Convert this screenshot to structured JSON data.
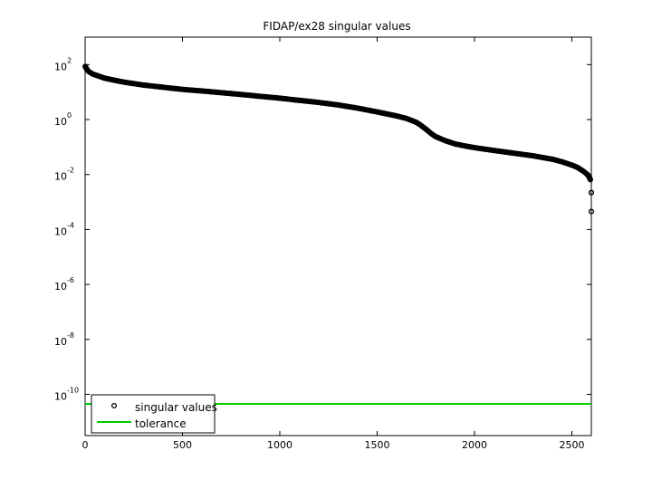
{
  "chart_data": {
    "type": "scatter",
    "title": "FIDAP/ex28 singular values",
    "xlabel": "",
    "ylabel": "",
    "xlim": [
      0,
      2600
    ],
    "ylim_log10": [
      -11.5,
      3
    ],
    "y_scale": "log",
    "grid": false,
    "legend_placement": "bottom-left",
    "x_ticks": [
      0,
      500,
      1000,
      1500,
      2000,
      2500
    ],
    "y_ticks_exponents": [
      -10,
      -8,
      -6,
      -4,
      -2,
      0,
      2
    ],
    "y_tick_base": "10",
    "series": [
      {
        "name": "singular values",
        "marker": "circle",
        "color": "#000000",
        "x": [
          1,
          5,
          10,
          20,
          40,
          70,
          100,
          150,
          200,
          300,
          400,
          500,
          600,
          700,
          800,
          900,
          1000,
          1100,
          1200,
          1300,
          1400,
          1500,
          1600,
          1650,
          1700,
          1720,
          1750,
          1780,
          1800,
          1850,
          1900,
          1950,
          2000,
          2100,
          2200,
          2300,
          2400,
          2450,
          2500,
          2530,
          2560,
          2580,
          2590,
          2595,
          2598,
          2600,
          2600,
          2600
        ],
        "y": [
          85,
          75,
          65,
          55,
          45,
          38,
          32,
          27,
          23,
          18,
          15,
          12.5,
          11,
          9.5,
          8.2,
          7.0,
          6.0,
          5.0,
          4.2,
          3.4,
          2.6,
          1.9,
          1.35,
          1.1,
          0.8,
          0.65,
          0.45,
          0.3,
          0.24,
          0.17,
          0.13,
          0.11,
          0.095,
          0.075,
          0.06,
          0.048,
          0.036,
          0.029,
          0.022,
          0.018,
          0.013,
          0.01,
          0.008,
          0.0065,
          0.006,
          0.0022,
          0.0021,
          0.00045
        ]
      },
      {
        "name": "tolerance",
        "marker": "line",
        "color": "#00cc00",
        "x": [
          0,
          2600
        ],
        "y": [
          4.5e-11,
          4.5e-11
        ]
      }
    ]
  }
}
